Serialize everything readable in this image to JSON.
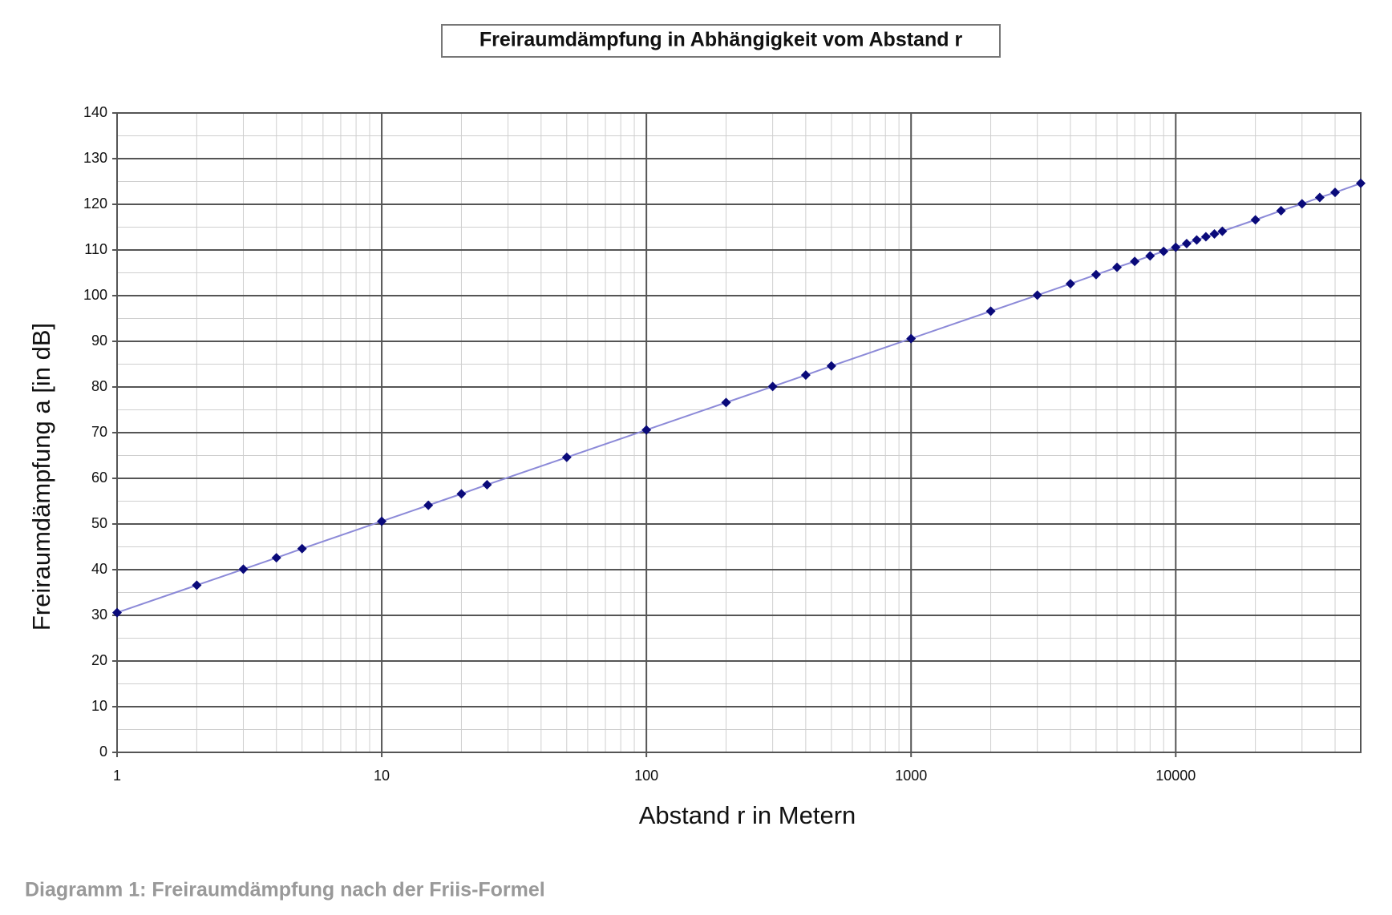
{
  "chart_data": {
    "type": "line",
    "title": "Freiraumdämpfung in Abhängigkeit vom Abstand r",
    "x_label": "Abstand r in Metern",
    "y_label": "Freiraumdämpfung a [in dB]",
    "caption": "Diagramm 1: Freiraumdämpfung nach der Friis-Formel",
    "x_log": true,
    "grid": true,
    "minor_grid": true,
    "x": [
      1,
      2,
      3,
      4,
      5,
      10,
      15,
      20,
      25,
      50,
      100,
      200,
      300,
      400,
      500,
      1000,
      2000,
      3000,
      4000,
      5000,
      6000,
      7000,
      8000,
      9000,
      10000,
      11000,
      12000,
      13000,
      14000,
      15000,
      20000,
      25000,
      30000,
      35000,
      40000,
      50000
    ],
    "series": [
      {
        "line_color": "#8c8ad8",
        "color": "#0a0a7a",
        "values": [
          30.6,
          36.6,
          40.1,
          42.6,
          44.6,
          50.6,
          54.1,
          56.6,
          58.6,
          64.6,
          70.6,
          76.6,
          80.1,
          82.6,
          84.6,
          90.6,
          96.6,
          100.1,
          102.6,
          104.6,
          106.2,
          107.5,
          108.7,
          109.7,
          110.6,
          111.4,
          112.2,
          112.9,
          113.5,
          114.1,
          116.6,
          118.6,
          120.1,
          121.5,
          122.6,
          124.6
        ]
      }
    ],
    "xlim": [
      1,
      50000
    ],
    "xticks": [
      1,
      10,
      100,
      1000,
      10000
    ],
    "ylim": [
      0,
      140
    ],
    "yticks": [
      0,
      10,
      20,
      30,
      40,
      50,
      60,
      70,
      80,
      90,
      100,
      110,
      120,
      130,
      140
    ]
  }
}
